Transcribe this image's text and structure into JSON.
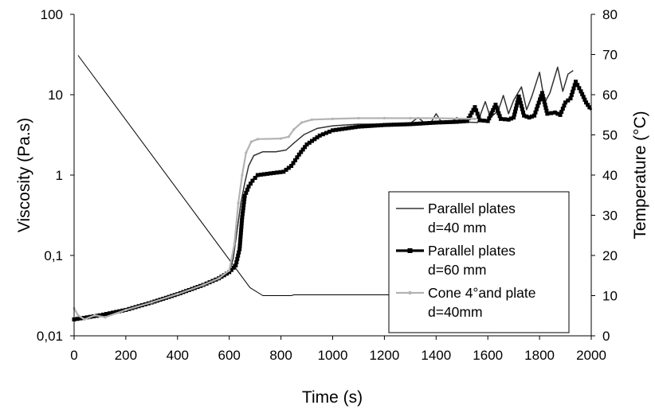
{
  "chart_data": {
    "type": "line",
    "title": "",
    "xlabel": "Time (s)",
    "ylabel": "Viscosity (Pa.s)",
    "y2label": "Temperature (°C)",
    "xlim": [
      0,
      2000
    ],
    "ylim": [
      0.01,
      100
    ],
    "ylog": true,
    "y2lim": [
      0,
      80
    ],
    "grid": false,
    "legend_position": "bottom-right",
    "x_ticks": [
      "0",
      "200",
      "400",
      "600",
      "800",
      "1000",
      "1200",
      "1400",
      "1600",
      "1800",
      "2000"
    ],
    "y_ticks": [
      "0,01",
      "0,1",
      "1",
      "10",
      "100"
    ],
    "y2_ticks": [
      "0",
      "10",
      "20",
      "30",
      "40",
      "50",
      "60",
      "70",
      "80"
    ],
    "series": [
      {
        "name": "Parallel plates d=40 mm",
        "legend_lines": [
          "Parallel plates",
          "d=40 mm"
        ],
        "axis": "left",
        "color": "#333333",
        "marker": "none",
        "points": [
          [
            0,
            0.016
          ],
          [
            100,
            0.018
          ],
          [
            200,
            0.021
          ],
          [
            300,
            0.026
          ],
          [
            400,
            0.033
          ],
          [
            500,
            0.043
          ],
          [
            560,
            0.05
          ],
          [
            600,
            0.065
          ],
          [
            615,
            0.09
          ],
          [
            630,
            0.2
          ],
          [
            645,
            0.45
          ],
          [
            660,
            0.8
          ],
          [
            675,
            1.3
          ],
          [
            695,
            1.75
          ],
          [
            730,
            1.95
          ],
          [
            780,
            1.95
          ],
          [
            820,
            2.05
          ],
          [
            850,
            2.5
          ],
          [
            890,
            3.2
          ],
          [
            940,
            3.8
          ],
          [
            1000,
            4.1
          ],
          [
            1100,
            4.3
          ],
          [
            1200,
            4.3
          ],
          [
            1300,
            4.4
          ],
          [
            1330,
            5.2
          ],
          [
            1350,
            4.6
          ],
          [
            1380,
            4.5
          ],
          [
            1400,
            5.8
          ],
          [
            1420,
            4.6
          ],
          [
            1460,
            4.6
          ],
          [
            1480,
            5.2
          ],
          [
            1500,
            4.6
          ],
          [
            1560,
            4.5
          ],
          [
            1590,
            8.2
          ],
          [
            1610,
            5.2
          ],
          [
            1640,
            6.3
          ],
          [
            1660,
            9.8
          ],
          [
            1680,
            5.8
          ],
          [
            1700,
            8.5
          ],
          [
            1730,
            12.5
          ],
          [
            1750,
            6.5
          ],
          [
            1770,
            9.5
          ],
          [
            1800,
            19
          ],
          [
            1820,
            8
          ],
          [
            1840,
            10.5
          ],
          [
            1870,
            22
          ],
          [
            1890,
            11
          ],
          [
            1910,
            18
          ],
          [
            1930,
            20
          ]
        ]
      },
      {
        "name": "Parallel plates d=60 mm",
        "legend_lines": [
          "Parallel plates",
          "d=60 mm"
        ],
        "axis": "left",
        "color": "#000000",
        "marker": "square",
        "points": [
          [
            0,
            0.016
          ],
          [
            100,
            0.018
          ],
          [
            200,
            0.021
          ],
          [
            300,
            0.026
          ],
          [
            400,
            0.033
          ],
          [
            500,
            0.043
          ],
          [
            560,
            0.052
          ],
          [
            600,
            0.062
          ],
          [
            625,
            0.075
          ],
          [
            640,
            0.12
          ],
          [
            650,
            0.3
          ],
          [
            660,
            0.55
          ],
          [
            675,
            0.72
          ],
          [
            690,
            0.85
          ],
          [
            710,
            1.0
          ],
          [
            760,
            1.05
          ],
          [
            810,
            1.1
          ],
          [
            840,
            1.3
          ],
          [
            870,
            1.8
          ],
          [
            900,
            2.4
          ],
          [
            950,
            3.1
          ],
          [
            1000,
            3.6
          ],
          [
            1100,
            4.0
          ],
          [
            1200,
            4.2
          ],
          [
            1300,
            4.3
          ],
          [
            1400,
            4.5
          ],
          [
            1480,
            4.6
          ],
          [
            1520,
            4.7
          ],
          [
            1550,
            7.0
          ],
          [
            1570,
            4.8
          ],
          [
            1600,
            4.7
          ],
          [
            1630,
            7.5
          ],
          [
            1650,
            5.0
          ],
          [
            1680,
            4.9
          ],
          [
            1700,
            5.2
          ],
          [
            1720,
            9.5
          ],
          [
            1740,
            5.5
          ],
          [
            1760,
            5.2
          ],
          [
            1780,
            5.5
          ],
          [
            1810,
            10.5
          ],
          [
            1830,
            5.8
          ],
          [
            1860,
            6.0
          ],
          [
            1880,
            5.6
          ],
          [
            1900,
            8.0
          ],
          [
            1920,
            9.0
          ],
          [
            1940,
            14.5
          ],
          [
            1960,
            11.0
          ],
          [
            1980,
            8.0
          ],
          [
            2000,
            6.5
          ]
        ]
      },
      {
        "name": "Cone 4°and plate d=40mm",
        "legend_lines": [
          "Cone 4°and plate",
          "d=40mm"
        ],
        "axis": "left",
        "color": "#b3b3b3",
        "marker": "dot",
        "points": [
          [
            0,
            0.022
          ],
          [
            15,
            0.018
          ],
          [
            40,
            0.016
          ],
          [
            80,
            0.018
          ],
          [
            120,
            0.017
          ],
          [
            200,
            0.021
          ],
          [
            300,
            0.026
          ],
          [
            400,
            0.033
          ],
          [
            500,
            0.043
          ],
          [
            560,
            0.052
          ],
          [
            600,
            0.065
          ],
          [
            620,
            0.14
          ],
          [
            635,
            0.45
          ],
          [
            650,
            1.0
          ],
          [
            665,
            1.9
          ],
          [
            685,
            2.6
          ],
          [
            710,
            2.8
          ],
          [
            800,
            2.85
          ],
          [
            830,
            3.0
          ],
          [
            850,
            3.7
          ],
          [
            880,
            4.5
          ],
          [
            920,
            4.9
          ],
          [
            1000,
            5.0
          ],
          [
            1100,
            5.1
          ],
          [
            1200,
            5.1
          ],
          [
            1300,
            5.1
          ],
          [
            1400,
            5.1
          ],
          [
            1550,
            5.0
          ]
        ]
      },
      {
        "name": "Temperature",
        "axis": "right",
        "color": "#000000",
        "marker": "none",
        "show_in_legend": false,
        "points": [
          [
            15,
            69.8
          ],
          [
            680,
            12
          ],
          [
            730,
            10
          ],
          [
            840,
            10
          ],
          [
            850,
            10.2
          ],
          [
            1450,
            10.2
          ],
          [
            1480,
            10
          ]
        ]
      }
    ]
  }
}
